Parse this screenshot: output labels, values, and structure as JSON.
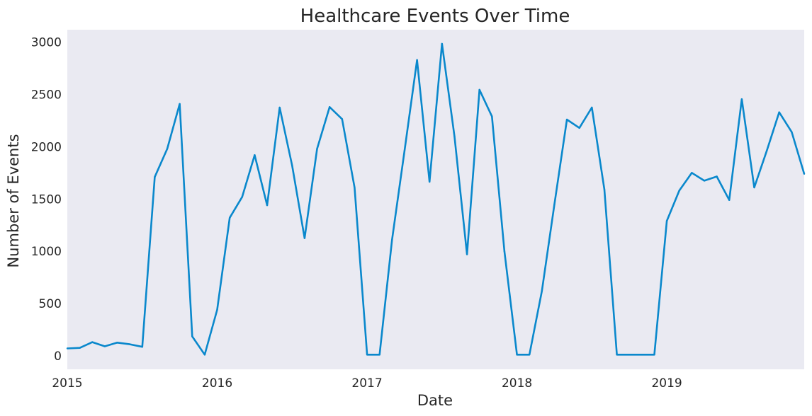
{
  "chart_data": {
    "type": "line",
    "title": "Healthcare Events Over Time",
    "xlabel": "Date",
    "ylabel": "Number of Events",
    "x_ticks": [
      "2015",
      "2016",
      "2017",
      "2018",
      "2019"
    ],
    "y_ticks": [
      "0",
      "500",
      "1000",
      "1500",
      "2000",
      "2500",
      "3000"
    ],
    "ylim": [
      -130,
      3120
    ],
    "xlim": [
      "2015-01",
      "2019-12"
    ],
    "grid": false,
    "colors": {
      "line": "#0a88cc",
      "plot_background": "#eaeaf2"
    },
    "series": [
      {
        "x": [
          "2015-01",
          "2015-02",
          "2015-03",
          "2015-04",
          "2015-05",
          "2015-06",
          "2015-07",
          "2015-08",
          "2015-09",
          "2015-10",
          "2015-11",
          "2015-12",
          "2016-01",
          "2016-02",
          "2016-03",
          "2016-04",
          "2016-05",
          "2016-06",
          "2016-07",
          "2016-08",
          "2016-09",
          "2016-10",
          "2016-11",
          "2016-12",
          "2017-01",
          "2017-02",
          "2017-03",
          "2017-04",
          "2017-05",
          "2017-06",
          "2017-07",
          "2017-08",
          "2017-09",
          "2017-10",
          "2017-11",
          "2017-12",
          "2018-01",
          "2018-02",
          "2018-03",
          "2018-04",
          "2018-05",
          "2018-06",
          "2018-07",
          "2018-08",
          "2018-09",
          "2018-10",
          "2018-11",
          "2018-12",
          "2019-01",
          "2019-02",
          "2019-03",
          "2019-04",
          "2019-05",
          "2019-06",
          "2019-07",
          "2019-08",
          "2019-09",
          "2019-10",
          "2019-11",
          "2019-12"
        ],
        "values": [
          70,
          75,
          130,
          90,
          125,
          110,
          85,
          1710,
          1980,
          2410,
          185,
          10,
          440,
          1320,
          1520,
          1920,
          1440,
          2375,
          1820,
          1125,
          1980,
          2380,
          2265,
          1610,
          10,
          10,
          1110,
          1960,
          2830,
          1665,
          2985,
          2100,
          970,
          2545,
          2290,
          1000,
          10,
          10,
          620,
          1450,
          2260,
          2180,
          2375,
          1590,
          10,
          10,
          10,
          10,
          1290,
          1580,
          1750,
          1675,
          1715,
          1490,
          2455,
          1610,
          1960,
          2330,
          2140,
          1740
        ]
      }
    ]
  }
}
